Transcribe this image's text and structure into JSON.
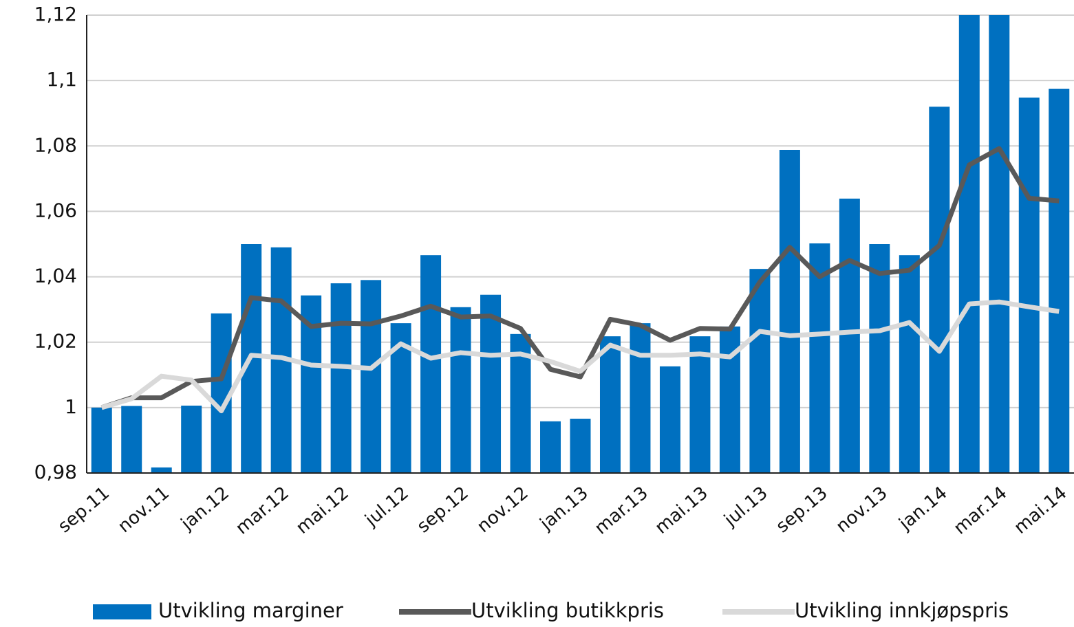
{
  "chart_data": {
    "type": "bar-line",
    "categories": [
      "sep.11",
      null,
      "nov.11",
      null,
      "jan.12",
      null,
      "mar.12",
      null,
      "mai.12",
      null,
      "jul.12",
      null,
      "sep.12",
      null,
      "nov.12",
      null,
      "jan.13",
      null,
      "mar.13",
      null,
      "mai.13",
      null,
      "jul.13",
      null,
      "sep.13",
      null,
      "nov.13",
      null,
      "jan.14",
      null,
      "mar.14",
      null,
      "mai.14"
    ],
    "series": [
      {
        "name": "Utvikling marginer",
        "type": "bar",
        "color": "#0070c0",
        "values": [
          1.0,
          1.0005,
          0.9817,
          1.0006,
          1.0288,
          1.05,
          1.049,
          1.0343,
          1.038,
          1.039,
          1.0258,
          1.0466,
          1.0307,
          1.0345,
          1.0225,
          0.9958,
          0.9966,
          1.0218,
          1.0258,
          1.0126,
          1.0218,
          1.0248,
          1.0424,
          1.0788,
          1.0502,
          1.0639,
          1.05,
          1.0466,
          1.092,
          1.125,
          1.125,
          1.0948,
          1.0975
        ]
      },
      {
        "name": "Utvikling butikkpris",
        "type": "line",
        "color": "#595959",
        "values": [
          1.0,
          1.003,
          1.003,
          1.008,
          1.0088,
          1.0336,
          1.0326,
          1.0248,
          1.0258,
          1.0256,
          1.028,
          1.031,
          1.0277,
          1.028,
          1.0242,
          1.0117,
          1.0094,
          1.027,
          1.0252,
          1.0206,
          1.0242,
          1.024,
          1.0384,
          1.049,
          1.04,
          1.045,
          1.041,
          1.042,
          1.0496,
          1.0742,
          1.0792,
          1.064,
          1.0632
        ]
      },
      {
        "name": "Utvikling innkjøpspris",
        "type": "line",
        "color": "#d9d9d9",
        "values": [
          1.0,
          1.0027,
          1.0096,
          1.0084,
          0.999,
          1.016,
          1.0153,
          1.013,
          1.0126,
          1.012,
          1.0195,
          1.0151,
          1.0168,
          1.016,
          1.0164,
          1.0141,
          1.0111,
          1.0191,
          1.016,
          1.016,
          1.0164,
          1.0155,
          1.0233,
          1.022,
          1.0225,
          1.0231,
          1.0235,
          1.026,
          1.0172,
          1.0317,
          1.0323,
          1.0308,
          1.0294
        ]
      }
    ],
    "ylim": [
      0.98,
      1.12
    ],
    "yticks": [
      {
        "value": 0.98,
        "label": "0,98"
      },
      1,
      {
        "value": 1.02,
        "label": "1,02"
      },
      {
        "value": 1.04,
        "label": "1,04"
      },
      {
        "value": 1.06,
        "label": "1,06"
      },
      {
        "value": 1.08,
        "label": "1,08"
      },
      {
        "value": 1.1,
        "label": "1,1"
      },
      {
        "value": 1.12,
        "label": "1,12"
      }
    ],
    "grid": true,
    "legend": "bottom"
  }
}
